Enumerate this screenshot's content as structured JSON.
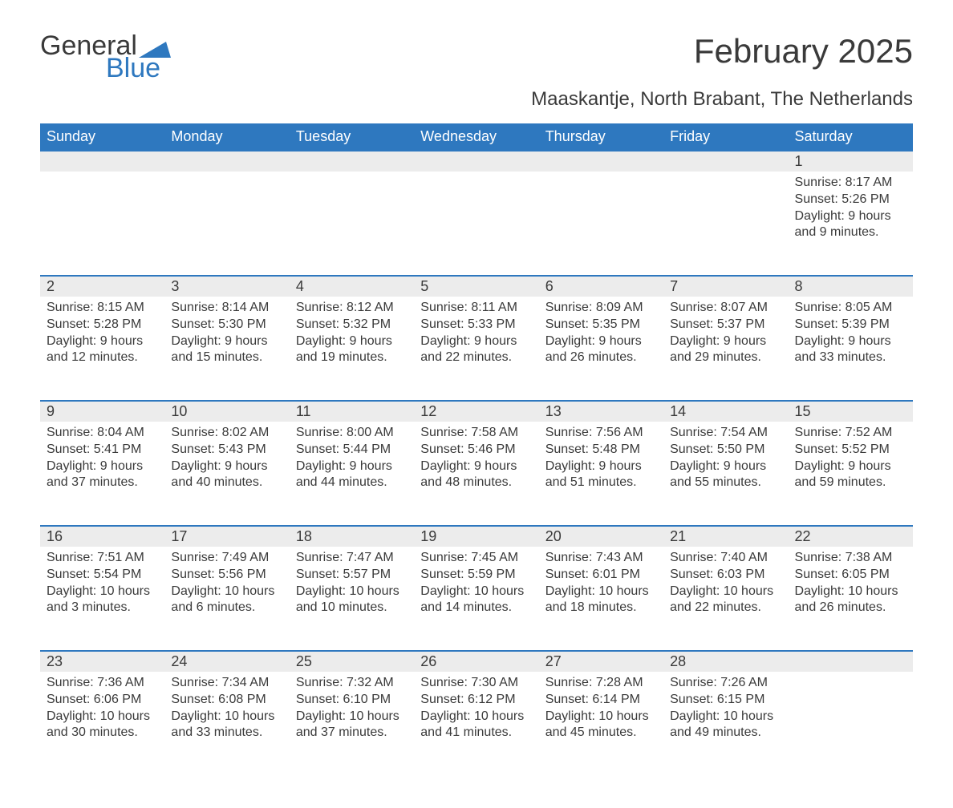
{
  "logo": {
    "word1": "General",
    "word2": "Blue"
  },
  "title": "February 2025",
  "subtitle": "Maaskantje, North Brabant, The Netherlands",
  "colors": {
    "header_bg": "#2e78bf",
    "header_text": "#ffffff",
    "daynum_bg": "#ececec",
    "daynum_border_top": "#2e78bf",
    "body_bg": "#ffffff",
    "text": "#3a3a3a"
  },
  "fonts": {
    "title_size_pt": 32,
    "subtitle_size_pt": 18,
    "header_size_pt": 14,
    "daynum_size_pt": 14,
    "body_size_pt": 12
  },
  "weekdays": [
    "Sunday",
    "Monday",
    "Tuesday",
    "Wednesday",
    "Thursday",
    "Friday",
    "Saturday"
  ],
  "weeks": [
    [
      null,
      null,
      null,
      null,
      null,
      null,
      {
        "n": "1",
        "sunrise": "Sunrise: 8:17 AM",
        "sunset": "Sunset: 5:26 PM",
        "daylight": "Daylight: 9 hours and 9 minutes."
      }
    ],
    [
      {
        "n": "2",
        "sunrise": "Sunrise: 8:15 AM",
        "sunset": "Sunset: 5:28 PM",
        "daylight": "Daylight: 9 hours and 12 minutes."
      },
      {
        "n": "3",
        "sunrise": "Sunrise: 8:14 AM",
        "sunset": "Sunset: 5:30 PM",
        "daylight": "Daylight: 9 hours and 15 minutes."
      },
      {
        "n": "4",
        "sunrise": "Sunrise: 8:12 AM",
        "sunset": "Sunset: 5:32 PM",
        "daylight": "Daylight: 9 hours and 19 minutes."
      },
      {
        "n": "5",
        "sunrise": "Sunrise: 8:11 AM",
        "sunset": "Sunset: 5:33 PM",
        "daylight": "Daylight: 9 hours and 22 minutes."
      },
      {
        "n": "6",
        "sunrise": "Sunrise: 8:09 AM",
        "sunset": "Sunset: 5:35 PM",
        "daylight": "Daylight: 9 hours and 26 minutes."
      },
      {
        "n": "7",
        "sunrise": "Sunrise: 8:07 AM",
        "sunset": "Sunset: 5:37 PM",
        "daylight": "Daylight: 9 hours and 29 minutes."
      },
      {
        "n": "8",
        "sunrise": "Sunrise: 8:05 AM",
        "sunset": "Sunset: 5:39 PM",
        "daylight": "Daylight: 9 hours and 33 minutes."
      }
    ],
    [
      {
        "n": "9",
        "sunrise": "Sunrise: 8:04 AM",
        "sunset": "Sunset: 5:41 PM",
        "daylight": "Daylight: 9 hours and 37 minutes."
      },
      {
        "n": "10",
        "sunrise": "Sunrise: 8:02 AM",
        "sunset": "Sunset: 5:43 PM",
        "daylight": "Daylight: 9 hours and 40 minutes."
      },
      {
        "n": "11",
        "sunrise": "Sunrise: 8:00 AM",
        "sunset": "Sunset: 5:44 PM",
        "daylight": "Daylight: 9 hours and 44 minutes."
      },
      {
        "n": "12",
        "sunrise": "Sunrise: 7:58 AM",
        "sunset": "Sunset: 5:46 PM",
        "daylight": "Daylight: 9 hours and 48 minutes."
      },
      {
        "n": "13",
        "sunrise": "Sunrise: 7:56 AM",
        "sunset": "Sunset: 5:48 PM",
        "daylight": "Daylight: 9 hours and 51 minutes."
      },
      {
        "n": "14",
        "sunrise": "Sunrise: 7:54 AM",
        "sunset": "Sunset: 5:50 PM",
        "daylight": "Daylight: 9 hours and 55 minutes."
      },
      {
        "n": "15",
        "sunrise": "Sunrise: 7:52 AM",
        "sunset": "Sunset: 5:52 PM",
        "daylight": "Daylight: 9 hours and 59 minutes."
      }
    ],
    [
      {
        "n": "16",
        "sunrise": "Sunrise: 7:51 AM",
        "sunset": "Sunset: 5:54 PM",
        "daylight": "Daylight: 10 hours and 3 minutes."
      },
      {
        "n": "17",
        "sunrise": "Sunrise: 7:49 AM",
        "sunset": "Sunset: 5:56 PM",
        "daylight": "Daylight: 10 hours and 6 minutes."
      },
      {
        "n": "18",
        "sunrise": "Sunrise: 7:47 AM",
        "sunset": "Sunset: 5:57 PM",
        "daylight": "Daylight: 10 hours and 10 minutes."
      },
      {
        "n": "19",
        "sunrise": "Sunrise: 7:45 AM",
        "sunset": "Sunset: 5:59 PM",
        "daylight": "Daylight: 10 hours and 14 minutes."
      },
      {
        "n": "20",
        "sunrise": "Sunrise: 7:43 AM",
        "sunset": "Sunset: 6:01 PM",
        "daylight": "Daylight: 10 hours and 18 minutes."
      },
      {
        "n": "21",
        "sunrise": "Sunrise: 7:40 AM",
        "sunset": "Sunset: 6:03 PM",
        "daylight": "Daylight: 10 hours and 22 minutes."
      },
      {
        "n": "22",
        "sunrise": "Sunrise: 7:38 AM",
        "sunset": "Sunset: 6:05 PM",
        "daylight": "Daylight: 10 hours and 26 minutes."
      }
    ],
    [
      {
        "n": "23",
        "sunrise": "Sunrise: 7:36 AM",
        "sunset": "Sunset: 6:06 PM",
        "daylight": "Daylight: 10 hours and 30 minutes."
      },
      {
        "n": "24",
        "sunrise": "Sunrise: 7:34 AM",
        "sunset": "Sunset: 6:08 PM",
        "daylight": "Daylight: 10 hours and 33 minutes."
      },
      {
        "n": "25",
        "sunrise": "Sunrise: 7:32 AM",
        "sunset": "Sunset: 6:10 PM",
        "daylight": "Daylight: 10 hours and 37 minutes."
      },
      {
        "n": "26",
        "sunrise": "Sunrise: 7:30 AM",
        "sunset": "Sunset: 6:12 PM",
        "daylight": "Daylight: 10 hours and 41 minutes."
      },
      {
        "n": "27",
        "sunrise": "Sunrise: 7:28 AM",
        "sunset": "Sunset: 6:14 PM",
        "daylight": "Daylight: 10 hours and 45 minutes."
      },
      {
        "n": "28",
        "sunrise": "Sunrise: 7:26 AM",
        "sunset": "Sunset: 6:15 PM",
        "daylight": "Daylight: 10 hours and 49 minutes."
      },
      null
    ]
  ]
}
